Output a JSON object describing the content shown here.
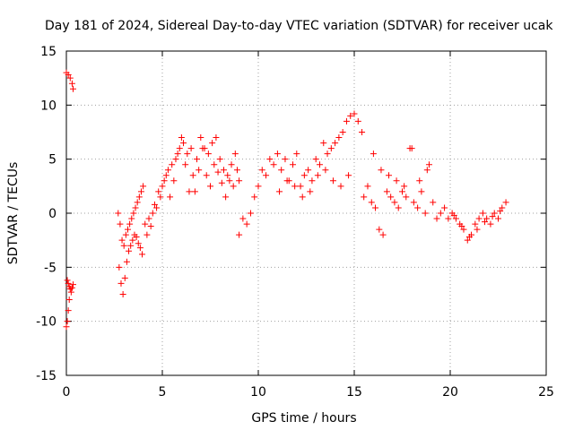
{
  "chart_data": {
    "type": "scatter",
    "title": "Day 181 of 2024, Sidereal Day-to-day VTEC variation (SDTVAR) for receiver ucak",
    "xlabel": "GPS time / hours",
    "ylabel": "SDTVAR / TECUs",
    "xlim": [
      0,
      25
    ],
    "ylim": [
      -15,
      15
    ],
    "xticks": [
      0,
      5,
      10,
      15,
      20,
      25
    ],
    "yticks": [
      -15,
      -10,
      -5,
      0,
      5,
      10,
      15
    ],
    "xtick_labels": [
      "0",
      "5",
      "10",
      "15",
      "20",
      "25"
    ],
    "ytick_labels": [
      "-15",
      "-10",
      "-5",
      "0",
      "5",
      "10",
      "15"
    ],
    "grid": true,
    "marker": "+",
    "series": [
      {
        "name": "SDTVAR",
        "color": "#ff0000",
        "x": [
          0.0,
          0.1,
          0.2,
          0.3,
          0.35,
          0.05,
          0.1,
          0.15,
          0.2,
          0.25,
          0.3,
          0.35,
          0.0,
          0.05,
          0.1,
          0.15,
          2.7,
          2.8,
          2.9,
          3.0,
          3.1,
          3.2,
          3.3,
          3.4,
          3.5,
          3.6,
          3.7,
          3.8,
          3.9,
          4.0,
          2.75,
          2.85,
          2.95,
          3.05,
          3.15,
          3.25,
          3.35,
          3.45,
          3.55,
          3.65,
          3.75,
          3.85,
          3.95,
          4.1,
          4.3,
          4.5,
          4.7,
          4.9,
          5.0,
          5.1,
          5.3,
          5.5,
          5.7,
          5.9,
          6.0,
          6.1,
          6.3,
          6.5,
          4.2,
          4.4,
          4.6,
          4.8,
          5.2,
          5.4,
          5.6,
          5.8,
          6.2,
          6.4,
          6.6,
          6.8,
          7.0,
          7.2,
          7.4,
          7.6,
          7.8,
          8.0,
          8.2,
          8.4,
          8.6,
          8.8,
          9.0,
          6.7,
          6.9,
          7.1,
          7.3,
          7.5,
          7.7,
          7.9,
          8.1,
          8.3,
          8.5,
          8.7,
          8.9,
          9.0,
          9.2,
          9.4,
          9.6,
          9.8,
          10.0,
          10.2,
          10.4,
          10.6,
          10.8,
          11.0,
          11.2,
          11.4,
          11.6,
          11.8,
          12.0,
          12.2,
          12.4,
          12.6,
          12.8,
          13.0,
          13.2,
          13.4,
          13.6,
          13.8,
          14.0,
          14.2,
          14.4,
          14.6,
          14.8,
          15.0,
          15.2,
          15.4,
          11.1,
          11.5,
          11.9,
          12.3,
          12.7,
          13.1,
          13.5,
          13.9,
          14.3,
          14.7,
          15.5,
          15.7,
          15.9,
          16.1,
          16.3,
          16.5,
          16.7,
          16.9,
          17.1,
          17.3,
          17.5,
          17.7,
          17.9,
          18.1,
          18.3,
          18.5,
          18.7,
          18.9,
          19.1,
          19.3,
          19.5,
          19.7,
          19.9,
          16.0,
          16.4,
          16.8,
          17.2,
          17.6,
          18.0,
          18.4,
          18.8,
          20.1,
          20.3,
          20.5,
          20.7,
          20.9,
          21.1,
          21.3,
          21.5,
          21.7,
          21.9,
          22.1,
          22.3,
          22.5,
          22.7,
          22.9,
          20.2,
          20.6,
          21.0,
          21.4,
          21.8,
          22.2,
          22.6
        ],
        "y": [
          13.0,
          12.8,
          12.5,
          12.0,
          11.5,
          -6.2,
          -6.5,
          -6.8,
          -7.0,
          -7.3,
          -6.9,
          -6.6,
          -10.5,
          -10.0,
          -9.0,
          -8.0,
          0.0,
          -1.0,
          -2.5,
          -3.0,
          -2.0,
          -1.5,
          -1.0,
          -0.5,
          0.0,
          0.5,
          1.0,
          1.5,
          2.0,
          2.5,
          -5.0,
          -6.5,
          -7.5,
          -6.0,
          -4.5,
          -3.5,
          -3.0,
          -2.5,
          -2.0,
          -2.2,
          -2.8,
          -3.2,
          -3.8,
          -1.0,
          -0.5,
          0.0,
          0.5,
          1.5,
          2.5,
          3.0,
          4.0,
          4.5,
          5.0,
          6.0,
          7.0,
          6.5,
          5.5,
          6.0,
          -2.0,
          -1.2,
          0.8,
          2.0,
          3.5,
          1.5,
          3.0,
          5.5,
          4.5,
          2.0,
          3.5,
          5.0,
          7.0,
          6.0,
          5.5,
          6.5,
          7.0,
          5.0,
          4.0,
          3.5,
          4.5,
          5.5,
          3.0,
          2.0,
          4.0,
          6.0,
          3.5,
          2.5,
          4.5,
          3.8,
          2.8,
          1.5,
          3.0,
          2.5,
          4.0,
          -2.0,
          -0.5,
          -1.0,
          0.0,
          1.5,
          2.5,
          4.0,
          3.5,
          5.0,
          4.5,
          5.5,
          4.0,
          5.0,
          3.0,
          4.5,
          5.5,
          2.5,
          3.5,
          4.0,
          3.0,
          5.0,
          4.5,
          6.5,
          5.5,
          6.0,
          6.5,
          7.0,
          7.5,
          8.5,
          9.0,
          9.2,
          8.5,
          7.5,
          2.0,
          3.0,
          2.5,
          1.5,
          2.0,
          3.5,
          4.0,
          3.0,
          2.5,
          3.5,
          1.5,
          2.5,
          1.0,
          0.5,
          -1.5,
          -2.0,
          2.0,
          1.5,
          1.0,
          0.5,
          2.0,
          1.5,
          6.0,
          1.0,
          0.5,
          2.0,
          0.0,
          4.5,
          1.0,
          -0.5,
          0.0,
          0.5,
          -0.5,
          5.5,
          4.0,
          3.5,
          3.0,
          2.5,
          6.0,
          3.0,
          4.0,
          0.0,
          -0.5,
          -1.0,
          -1.5,
          -2.5,
          -2.0,
          -1.0,
          -0.5,
          0.0,
          -0.5,
          -1.0,
          0.0,
          -0.5,
          0.5,
          1.0,
          -0.2,
          -1.2,
          -2.2,
          -1.5,
          -0.8,
          -0.3,
          0.2
        ]
      }
    ]
  }
}
